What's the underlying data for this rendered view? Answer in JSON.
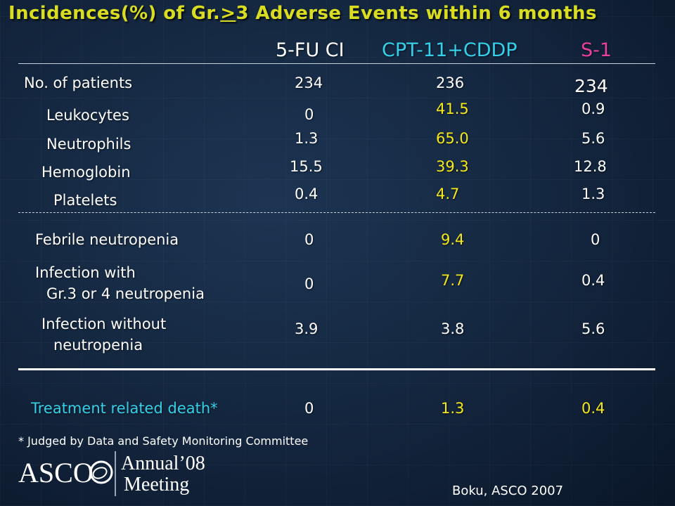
{
  "slide": {
    "title_prefix": "Incidences(%) of Gr.",
    "title_symbol": ">",
    "title_suffix": "3 Adverse Events within 6 months"
  },
  "columns": {
    "fu": "5-FU CI",
    "cpt": "CPT-11+CDDP",
    "s1": "S-1"
  },
  "patients": {
    "label": "No. of patients",
    "fu": "234",
    "cpt": "236",
    "s1": "234"
  },
  "hematologic": [
    {
      "label": "Leukocytes",
      "fu": "0",
      "cpt": "41.5",
      "s1": "0.9"
    },
    {
      "label": "Neutrophils",
      "fu": "1.3",
      "cpt": "65.0",
      "s1": "5.6"
    },
    {
      "label": "Hemoglobin",
      "fu": "15.5",
      "cpt": "39.3",
      "s1": "12.8"
    },
    {
      "label": "Platelets",
      "fu": "0.4",
      "cpt": "4.7",
      "s1": "1.3"
    }
  ],
  "febrile": {
    "label": "Febrile neutropenia",
    "fu": "0",
    "cpt": "9.4",
    "s1": "0"
  },
  "infection_with": {
    "label_line1": "Infection with",
    "label_line2": "Gr.3 or 4 neutropenia",
    "fu": "0",
    "cpt": "7.7",
    "s1": "0.4"
  },
  "infection_without": {
    "label_line1": "Infection without",
    "label_line2": "neutropenia",
    "fu": "3.9",
    "cpt": "3.8",
    "s1": "5.6"
  },
  "death": {
    "label": "Treatment related death*",
    "fu": "0",
    "cpt": "1.3",
    "s1": "0.4"
  },
  "footnote": "* Judged by Data and Safety Monitoring Committee",
  "credit": "Boku, ASCO 2007",
  "logo": {
    "asco": "ASCO",
    "annual": "Annual",
    "year": "’08",
    "meeting": "Meeting"
  },
  "colors": {
    "title": "#d9dd22",
    "yellow": "#f4e81c",
    "cyan": "#35d0e8",
    "pink": "#e8409c"
  }
}
